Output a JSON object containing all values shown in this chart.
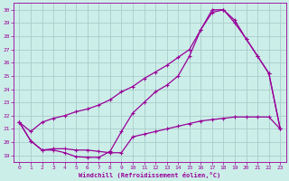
{
  "xlabel": "Windchill (Refroidissement éolien,°C)",
  "bg_color": "#cceee8",
  "grid_color": "#aacccc",
  "line_color": "#990099",
  "xlim": [
    -0.5,
    23.5
  ],
  "ylim": [
    18.5,
    30.5
  ],
  "yticks": [
    19,
    20,
    21,
    22,
    23,
    24,
    25,
    26,
    27,
    28,
    29,
    30
  ],
  "xticks": [
    0,
    1,
    2,
    3,
    4,
    5,
    6,
    7,
    8,
    9,
    10,
    11,
    12,
    13,
    14,
    15,
    16,
    17,
    18,
    19,
    20,
    21,
    22,
    23
  ],
  "line1_x": [
    0,
    1,
    2,
    3,
    4,
    5,
    6,
    7,
    8,
    9,
    10,
    11,
    12,
    13,
    14,
    15,
    16,
    17,
    18,
    19,
    20,
    21,
    22,
    23
  ],
  "line1_y": [
    21.5,
    20.1,
    19.4,
    19.4,
    19.2,
    18.9,
    18.85,
    18.85,
    19.3,
    20.8,
    22.2,
    23.0,
    23.8,
    24.3,
    25.0,
    26.5,
    28.5,
    30.0,
    30.0,
    29.2,
    27.8,
    26.5,
    25.2,
    21.0
  ],
  "line2_x": [
    0,
    1,
    2,
    3,
    4,
    5,
    6,
    7,
    8,
    9,
    10,
    11,
    12,
    13,
    14,
    15,
    16,
    17,
    18,
    19,
    20,
    21,
    22,
    23
  ],
  "line2_y": [
    21.5,
    20.1,
    19.4,
    19.5,
    19.5,
    19.4,
    19.4,
    19.3,
    19.2,
    19.2,
    20.4,
    20.6,
    20.8,
    21.0,
    21.2,
    21.4,
    21.6,
    21.7,
    21.8,
    21.9,
    21.9,
    21.9,
    21.9,
    21.0
  ],
  "line3_x": [
    0,
    1,
    2,
    3,
    4,
    5,
    6,
    7,
    8,
    9,
    10,
    11,
    12,
    13,
    14,
    15,
    16,
    17,
    18,
    19,
    20,
    21,
    22,
    23
  ],
  "line3_y": [
    21.5,
    20.8,
    21.5,
    21.8,
    22.0,
    22.3,
    22.5,
    22.8,
    23.2,
    23.8,
    24.2,
    24.8,
    25.3,
    25.8,
    26.4,
    27.0,
    28.5,
    29.8,
    30.0,
    29.0,
    27.8,
    26.5,
    25.2,
    21.0
  ]
}
